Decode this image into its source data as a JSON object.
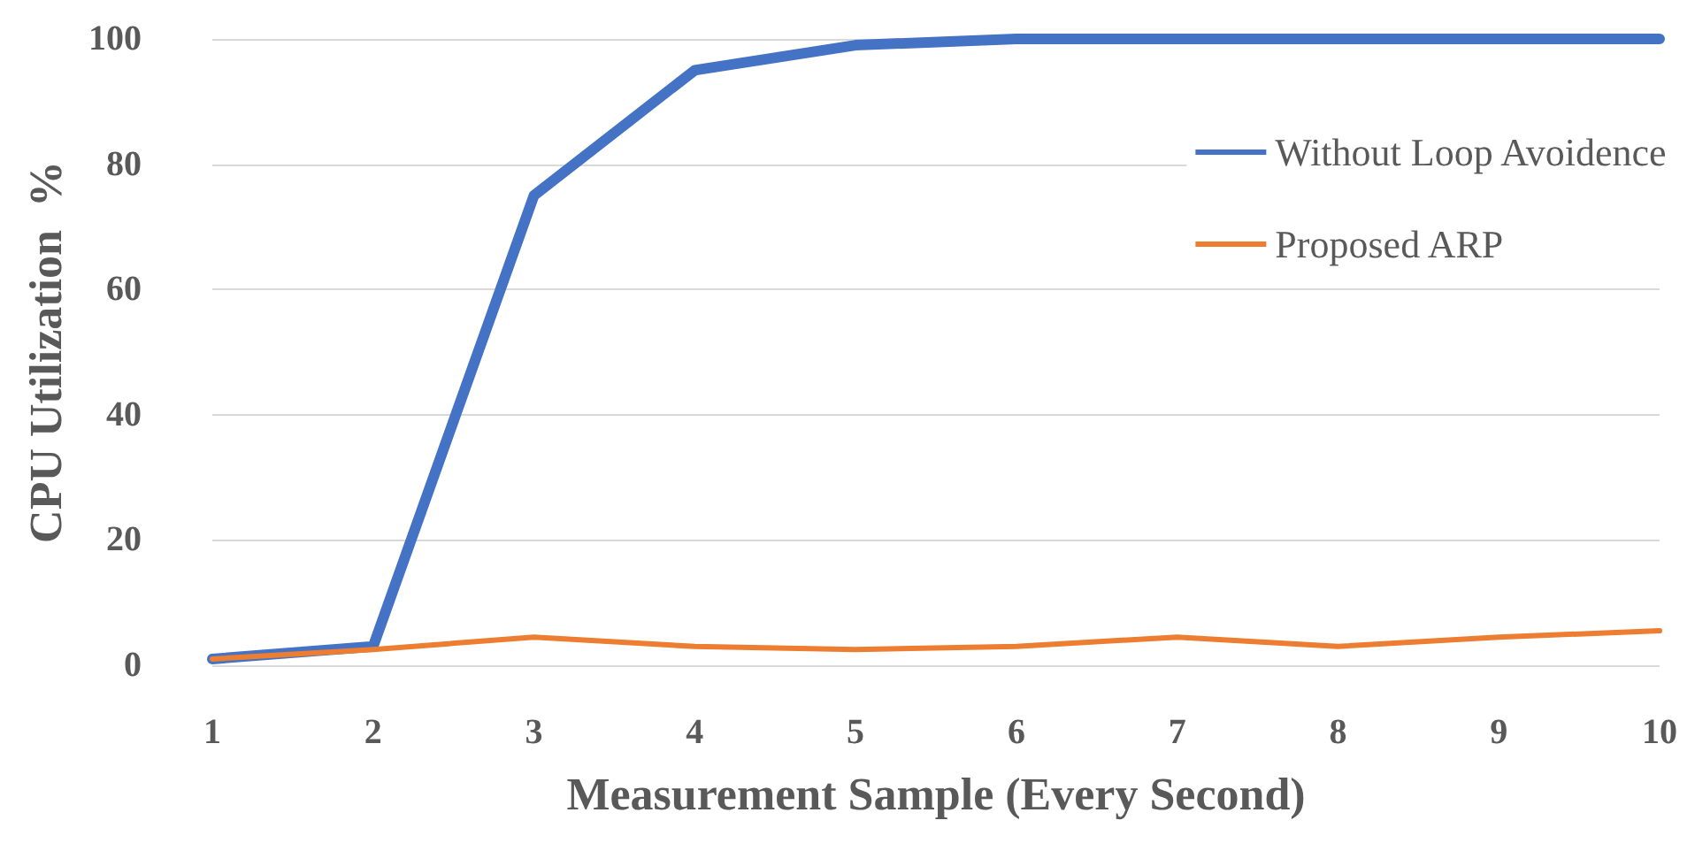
{
  "chart_data": {
    "type": "line",
    "xlabel": "Measurement Sample (Every Second)",
    "ylabel": "CPU Utilization  %",
    "categories": [
      "1",
      "2",
      "3",
      "4",
      "5",
      "6",
      "7",
      "8",
      "9",
      "10"
    ],
    "series": [
      {
        "name": "Without Loop Avoidence",
        "color": "#4472c4",
        "values": [
          1,
          3,
          75,
          95,
          99,
          100,
          100,
          100,
          100,
          100
        ]
      },
      {
        "name": "Proposed ARP",
        "color": "#ed7d31",
        "values": [
          1,
          2.5,
          4.5,
          3,
          2.5,
          3,
          4.5,
          3,
          4.5,
          5.5
        ]
      }
    ],
    "ylim": [
      0,
      100
    ],
    "yticks": [
      0,
      20,
      40,
      60,
      80,
      100
    ],
    "grid": "y",
    "legend": "top right",
    "marker": "none",
    "line_style": "solid"
  }
}
